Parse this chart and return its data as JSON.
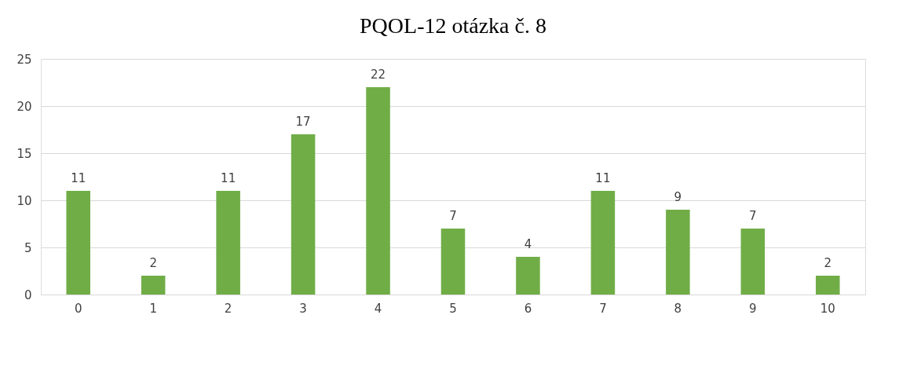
{
  "chart_data": {
    "type": "bar",
    "title": "PQOL-12  otázka č. 8",
    "categories": [
      "0",
      "1",
      "2",
      "3",
      "4",
      "5",
      "6",
      "7",
      "8",
      "9",
      "10"
    ],
    "values": [
      11,
      2,
      11,
      17,
      22,
      7,
      4,
      11,
      9,
      7,
      2
    ],
    "color": "#70ad47",
    "ylim": [
      0,
      25
    ],
    "yticks": [
      0,
      5,
      10,
      15,
      20,
      25
    ],
    "grid": "y",
    "data_labels": true
  }
}
